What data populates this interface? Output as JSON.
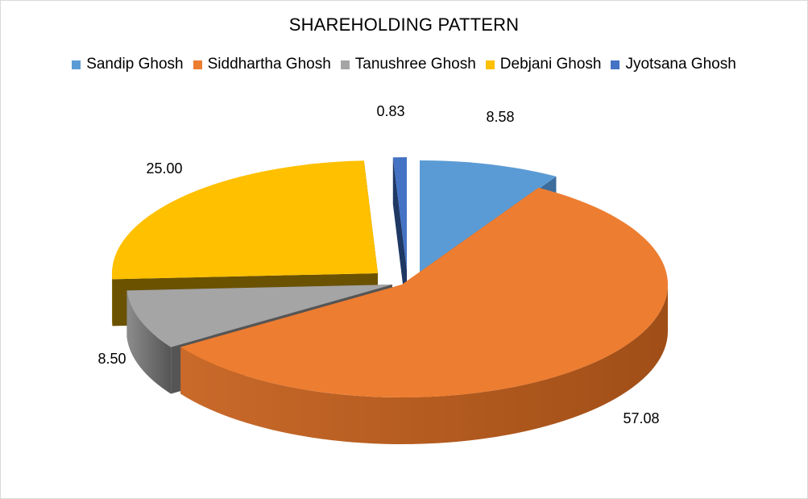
{
  "chart_data": {
    "type": "pie",
    "title": "SHAREHOLDING PATTERN",
    "legend_position": "top",
    "three_d": true,
    "exploded": true,
    "slices": [
      {
        "name": "Sandip Ghosh",
        "value": 8.58,
        "label": "8.58",
        "color": "#5b9bd5",
        "side_color": "#3c6d9c"
      },
      {
        "name": "Siddhartha Ghosh",
        "value": 57.08,
        "label": "57.08",
        "color": "#ed7d31",
        "side_color": "#a04e17"
      },
      {
        "name": "Tanushree Ghosh",
        "value": 8.5,
        "label": "8.50",
        "color": "#a5a5a5",
        "side_color": "#555555"
      },
      {
        "name": "Debjani Ghosh",
        "value": 25.0,
        "label": "25.00",
        "color": "#ffc000",
        "side_color": "#6b5200"
      },
      {
        "name": "Jyotsana Ghosh",
        "value": 0.83,
        "label": "0.83",
        "color": "#4472c4",
        "side_color": "#1f3864"
      }
    ]
  }
}
